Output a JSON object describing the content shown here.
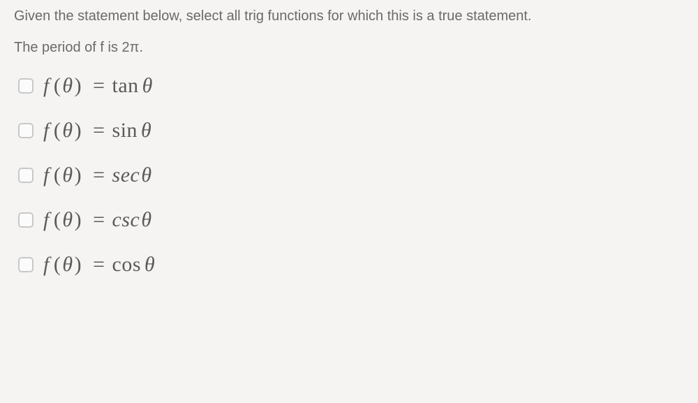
{
  "instruction": "Given the statement below, select all trig functions for which this is a true statement.",
  "statement": "The period of f is 2π.",
  "options": [
    {
      "lhs_f": "f",
      "lhs_arg": "θ",
      "eq": "=",
      "func": "tan",
      "arg": "θ"
    },
    {
      "lhs_f": "f",
      "lhs_arg": "θ",
      "eq": "=",
      "func": "sin",
      "arg": "θ"
    },
    {
      "lhs_f": "f",
      "lhs_arg": "θ",
      "eq": "=",
      "func": "sec",
      "arg": "θ"
    },
    {
      "lhs_f": "f",
      "lhs_arg": "θ",
      "eq": "=",
      "func": "csc",
      "arg": "θ"
    },
    {
      "lhs_f": "f",
      "lhs_arg": "θ",
      "eq": "=",
      "func": "cos",
      "arg": "θ"
    }
  ],
  "colors": {
    "background": "#f5f4f2",
    "text_muted": "#6a6a6a",
    "formula": "#5a5a5a",
    "checkbox_border": "#c8c8c8",
    "checkbox_fill": "#fbfbfb"
  },
  "typography": {
    "instruction_fontsize": 20,
    "formula_fontsize": 30,
    "formula_family": "Times New Roman"
  }
}
